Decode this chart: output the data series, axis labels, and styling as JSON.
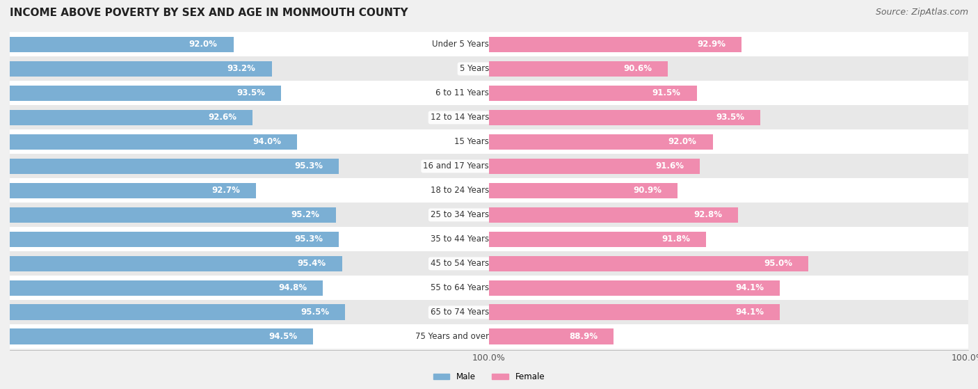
{
  "title": "INCOME ABOVE POVERTY BY SEX AND AGE IN MONMOUTH COUNTY",
  "source": "Source: ZipAtlas.com",
  "categories": [
    "Under 5 Years",
    "5 Years",
    "6 to 11 Years",
    "12 to 14 Years",
    "15 Years",
    "16 and 17 Years",
    "18 to 24 Years",
    "25 to 34 Years",
    "35 to 44 Years",
    "45 to 54 Years",
    "55 to 64 Years",
    "65 to 74 Years",
    "75 Years and over"
  ],
  "male_values": [
    92.0,
    93.2,
    93.5,
    92.6,
    94.0,
    95.3,
    92.7,
    95.2,
    95.3,
    95.4,
    94.8,
    95.5,
    94.5
  ],
  "female_values": [
    92.9,
    90.6,
    91.5,
    93.5,
    92.0,
    91.6,
    90.9,
    92.8,
    91.8,
    95.0,
    94.1,
    94.1,
    88.9
  ],
  "male_color": "#7bafd4",
  "female_color": "#f08caf",
  "male_label": "Male",
  "female_label": "Female",
  "bar_height": 0.65,
  "background_color": "#f0f0f0",
  "row_color_even": "#ffffff",
  "row_color_odd": "#e8e8e8",
  "title_fontsize": 11,
  "label_fontsize": 8.5,
  "tick_fontsize": 9,
  "source_fontsize": 9,
  "value_fontsize": 8.5,
  "cat_fontsize": 8.5
}
